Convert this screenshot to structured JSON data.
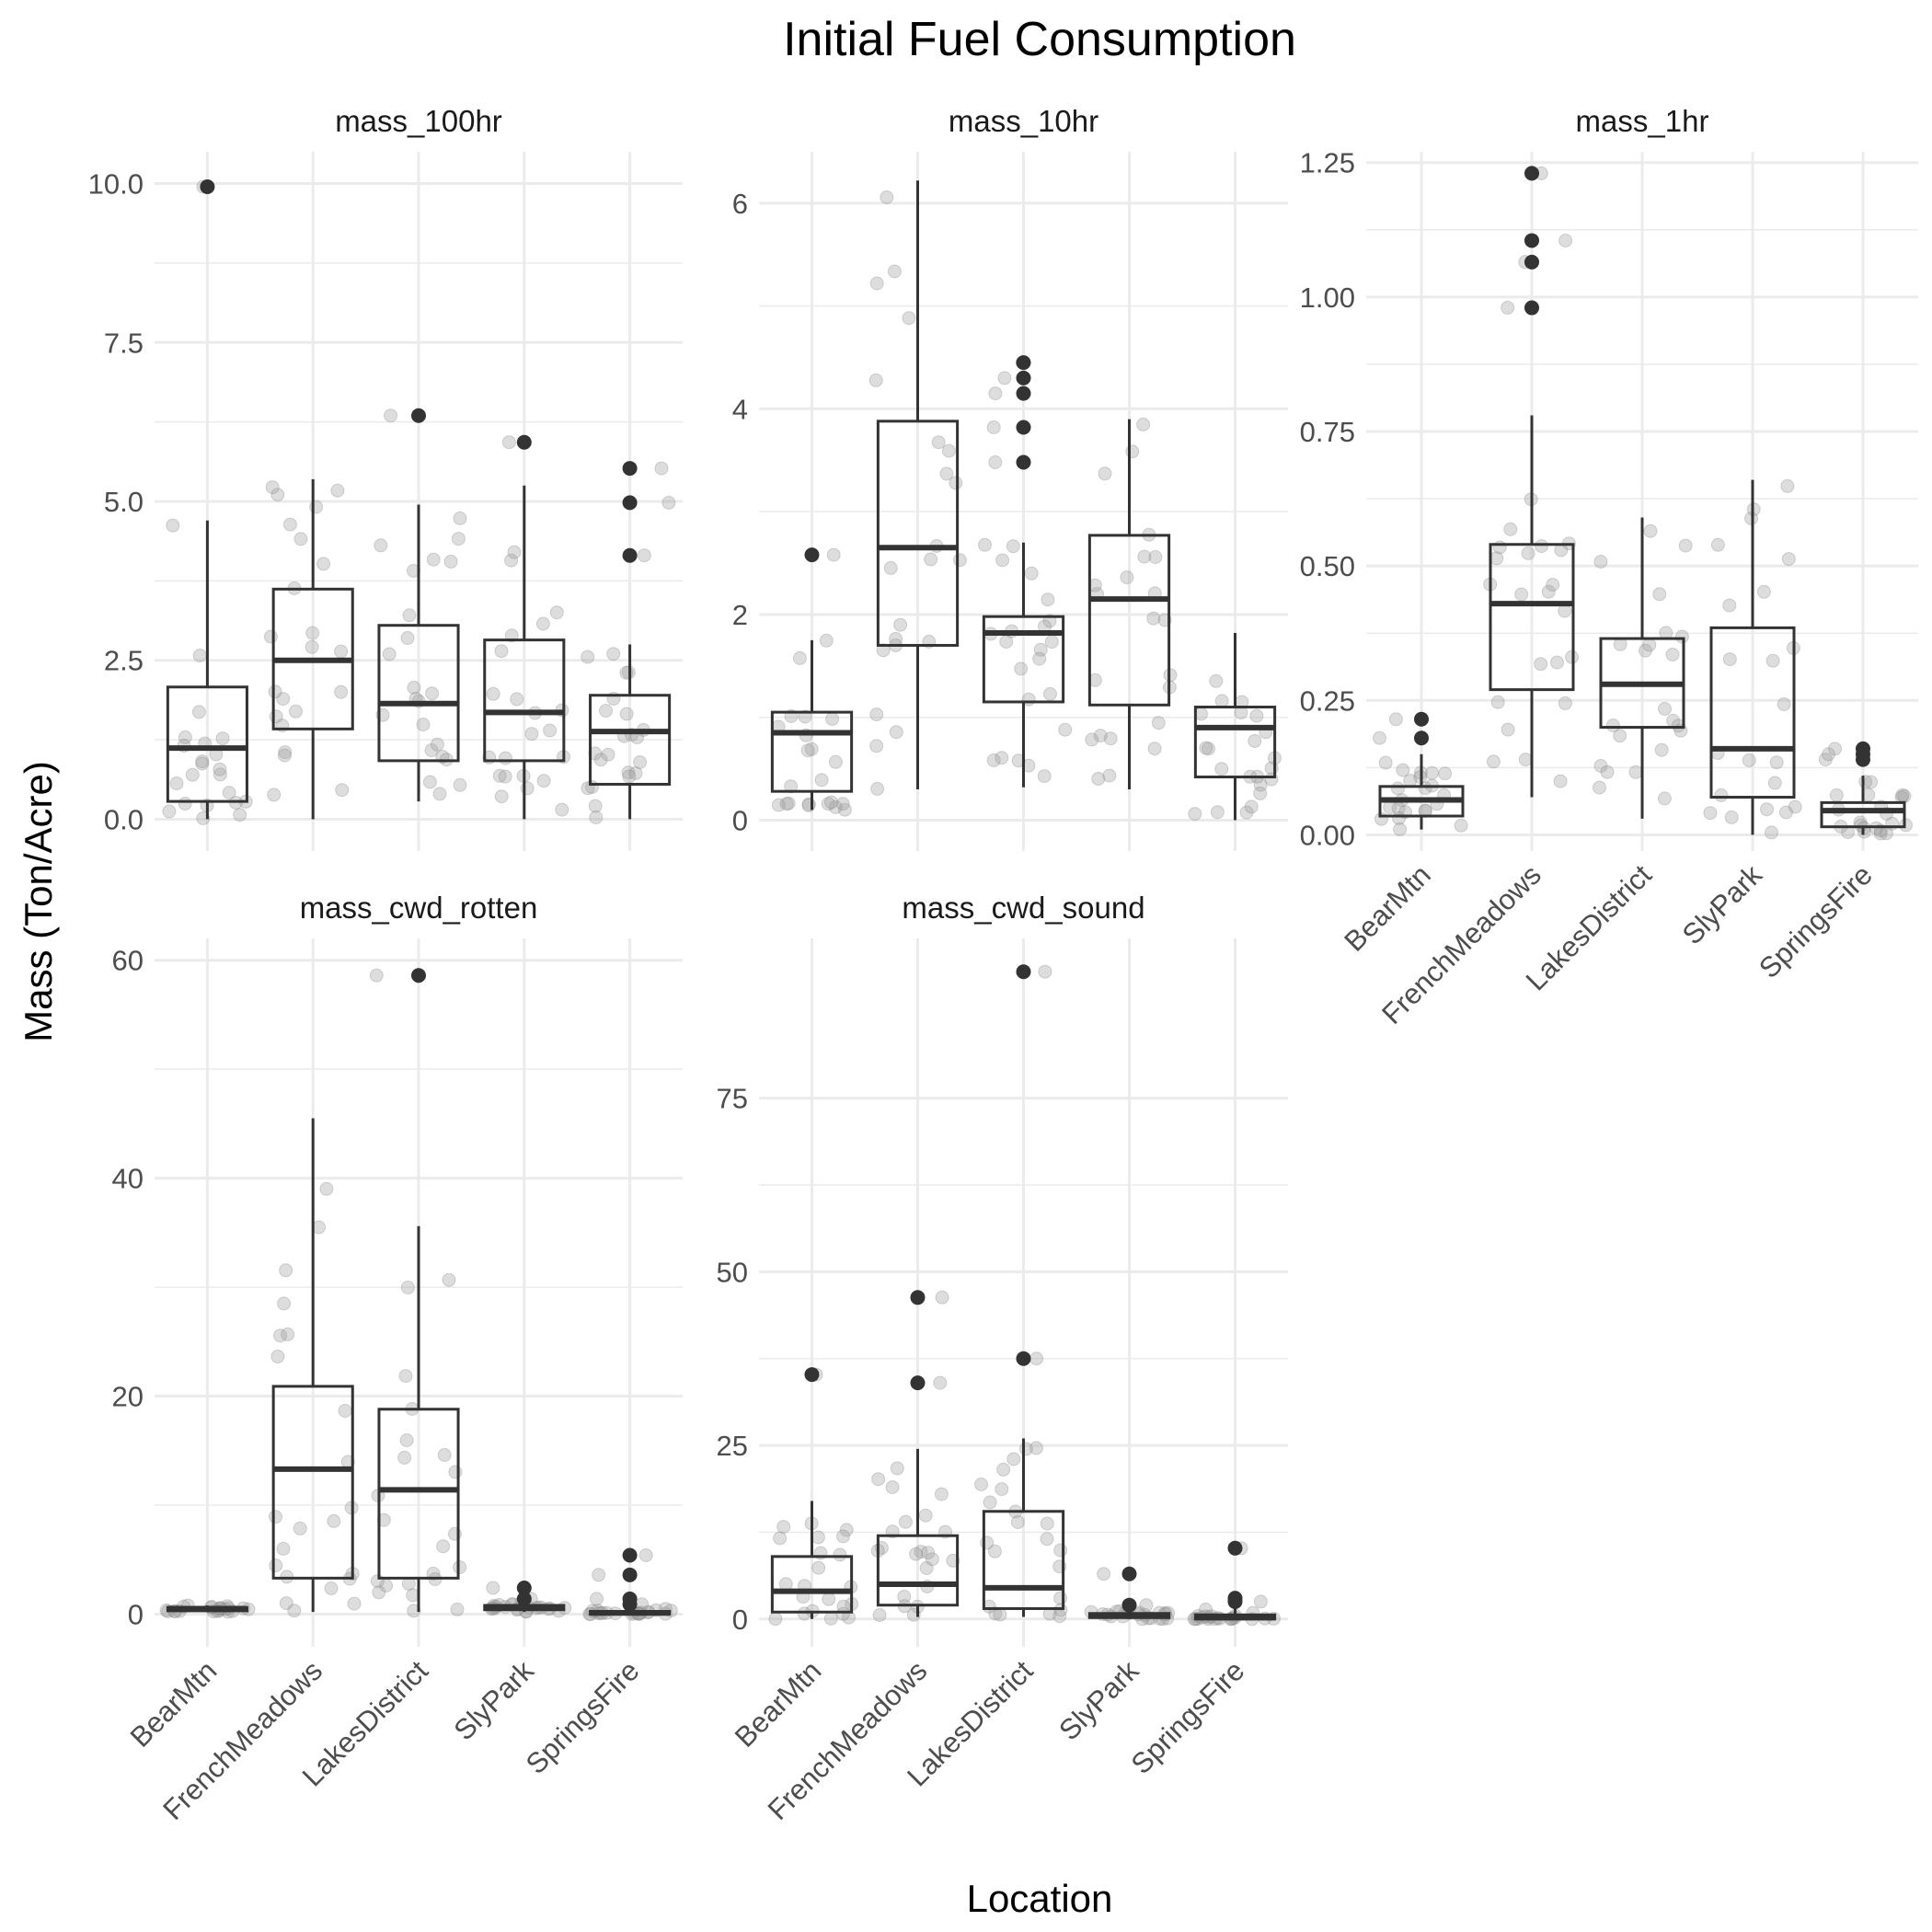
{
  "chart_data": {
    "type": "boxplot",
    "title": "Initial Fuel Consumption",
    "xlabel": "Location",
    "ylabel": "Mass (Ton/Acre)",
    "categories": [
      "BearMtn",
      "FrenchMeadows",
      "LakesDistrict",
      "SlyPark",
      "SpringsFire"
    ],
    "colors": {
      "box": "#333333",
      "outlier": "#333333",
      "jitter": "#9e9e9e",
      "grid": "#ebebeb"
    },
    "panels": [
      {
        "name": "mass_100hr",
        "ylim": [
          -0.5,
          10.5
        ],
        "yticks": [
          0,
          2.5,
          5,
          7.5,
          10
        ],
        "ytick_labels": [
          "0.0",
          "2.5",
          "5.0",
          "7.5",
          "10.0"
        ],
        "boxes": [
          {
            "category": "BearMtn",
            "q1": 0.28,
            "median": 1.12,
            "q3": 2.08,
            "whisker_low": 0.0,
            "whisker_high": 4.7,
            "outliers": [
              9.95
            ]
          },
          {
            "category": "FrenchMeadows",
            "q1": 1.42,
            "median": 2.5,
            "q3": 3.62,
            "whisker_low": 0.0,
            "whisker_high": 5.35,
            "outliers": []
          },
          {
            "category": "LakesDistrict",
            "q1": 0.92,
            "median": 1.82,
            "q3": 3.05,
            "whisker_low": 0.28,
            "whisker_high": 4.95,
            "outliers": [
              6.35
            ]
          },
          {
            "category": "SlyPark",
            "q1": 0.92,
            "median": 1.68,
            "q3": 2.82,
            "whisker_low": 0.0,
            "whisker_high": 5.25,
            "outliers": [
              5.93
            ]
          },
          {
            "category": "SpringsFire",
            "q1": 0.55,
            "median": 1.38,
            "q3": 1.95,
            "whisker_low": 0.0,
            "whisker_high": 2.75,
            "outliers": [
              4.15,
              4.98,
              5.52
            ]
          }
        ]
      },
      {
        "name": "mass_10hr",
        "ylim": [
          -0.3,
          6.5
        ],
        "yticks": [
          0,
          2,
          4,
          6
        ],
        "ytick_labels": [
          "0",
          "2",
          "4",
          "6"
        ],
        "boxes": [
          {
            "category": "BearMtn",
            "q1": 0.28,
            "median": 0.85,
            "q3": 1.05,
            "whisker_low": 0.1,
            "whisker_high": 1.75,
            "outliers": [
              2.58
            ]
          },
          {
            "category": "FrenchMeadows",
            "q1": 1.7,
            "median": 2.65,
            "q3": 3.88,
            "whisker_low": 0.3,
            "whisker_high": 6.22,
            "outliers": []
          },
          {
            "category": "LakesDistrict",
            "q1": 1.15,
            "median": 1.82,
            "q3": 1.98,
            "whisker_low": 0.32,
            "whisker_high": 2.7,
            "outliers": [
              3.48,
              3.82,
              4.15,
              4.3,
              4.45
            ]
          },
          {
            "category": "SlyPark",
            "q1": 1.12,
            "median": 2.15,
            "q3": 2.77,
            "whisker_low": 0.3,
            "whisker_high": 3.9,
            "outliers": []
          },
          {
            "category": "SpringsFire",
            "q1": 0.42,
            "median": 0.9,
            "q3": 1.1,
            "whisker_low": 0.0,
            "whisker_high": 1.82,
            "outliers": []
          }
        ]
      },
      {
        "name": "mass_1hr",
        "ylim": [
          -0.03,
          1.27
        ],
        "yticks": [
          0,
          0.25,
          0.5,
          0.75,
          1.0,
          1.25
        ],
        "ytick_labels": [
          "0.00",
          "0.25",
          "0.50",
          "0.75",
          "1.00",
          "1.25"
        ],
        "boxes": [
          {
            "category": "BearMtn",
            "q1": 0.035,
            "median": 0.065,
            "q3": 0.09,
            "whisker_low": 0.01,
            "whisker_high": 0.15,
            "outliers": [
              0.18,
              0.215
            ]
          },
          {
            "category": "FrenchMeadows",
            "q1": 0.27,
            "median": 0.43,
            "q3": 0.54,
            "whisker_low": 0.07,
            "whisker_high": 0.78,
            "outliers": [
              0.98,
              1.065,
              1.105,
              1.23
            ]
          },
          {
            "category": "LakesDistrict",
            "q1": 0.2,
            "median": 0.28,
            "q3": 0.365,
            "whisker_low": 0.03,
            "whisker_high": 0.59,
            "outliers": []
          },
          {
            "category": "SlyPark",
            "q1": 0.07,
            "median": 0.16,
            "q3": 0.385,
            "whisker_low": 0.0,
            "whisker_high": 0.66,
            "outliers": []
          },
          {
            "category": "SpringsFire",
            "q1": 0.015,
            "median": 0.045,
            "q3": 0.06,
            "whisker_low": 0.0,
            "whisker_high": 0.11,
            "outliers": [
              0.14,
              0.15,
              0.16
            ]
          }
        ]
      },
      {
        "name": "mass_cwd_rotten",
        "ylim": [
          -3,
          62
        ],
        "yticks": [
          0,
          20,
          40,
          60
        ],
        "ytick_labels": [
          "0",
          "20",
          "40",
          "60"
        ],
        "boxes": [
          {
            "category": "BearMtn",
            "q1": 0.3,
            "median": 0.5,
            "q3": 0.6,
            "whisker_low": 0.2,
            "whisker_high": 0.8,
            "outliers": []
          },
          {
            "category": "FrenchMeadows",
            "q1": 3.3,
            "median": 13.3,
            "q3": 20.9,
            "whisker_low": 0.2,
            "whisker_high": 45.5,
            "outliers": []
          },
          {
            "category": "LakesDistrict",
            "q1": 3.3,
            "median": 11.4,
            "q3": 18.8,
            "whisker_low": 0.2,
            "whisker_high": 35.6,
            "outliers": [
              58.6
            ]
          },
          {
            "category": "SlyPark",
            "q1": 0.4,
            "median": 0.6,
            "q3": 0.8,
            "whisker_low": 0.2,
            "whisker_high": 1.1,
            "outliers": [
              1.4,
              2.4
            ]
          },
          {
            "category": "SpringsFire",
            "q1": 0.0,
            "median": 0.1,
            "q3": 0.25,
            "whisker_low": 0.0,
            "whisker_high": 0.5,
            "outliers": [
              0.9,
              1.4,
              3.6,
              5.4
            ]
          }
        ]
      },
      {
        "name": "mass_cwd_sound",
        "ylim": [
          -4,
          98
        ],
        "yticks": [
          0,
          25,
          50,
          75
        ],
        "ytick_labels": [
          "0",
          "25",
          "50",
          "75"
        ],
        "boxes": [
          {
            "category": "BearMtn",
            "q1": 1.0,
            "median": 4.0,
            "q3": 9.0,
            "whisker_low": 0.0,
            "whisker_high": 17.0,
            "outliers": [
              35.2
            ]
          },
          {
            "category": "FrenchMeadows",
            "q1": 2.0,
            "median": 5.0,
            "q3": 12.0,
            "whisker_low": 0.3,
            "whisker_high": 24.5,
            "outliers": [
              34.0,
              46.3
            ]
          },
          {
            "category": "LakesDistrict",
            "q1": 1.5,
            "median": 4.5,
            "q3": 15.5,
            "whisker_low": 0.3,
            "whisker_high": 26.0,
            "outliers": [
              37.5,
              93.2
            ]
          },
          {
            "category": "SlyPark",
            "q1": 0.2,
            "median": 0.5,
            "q3": 0.8,
            "whisker_low": 0.0,
            "whisker_high": 1.2,
            "outliers": [
              2.0,
              6.5
            ]
          },
          {
            "category": "SpringsFire",
            "q1": 0.0,
            "median": 0.2,
            "q3": 0.6,
            "whisker_low": 0.0,
            "whisker_high": 1.5,
            "outliers": [
              2.5,
              3.0,
              10.2
            ]
          }
        ]
      }
    ]
  }
}
